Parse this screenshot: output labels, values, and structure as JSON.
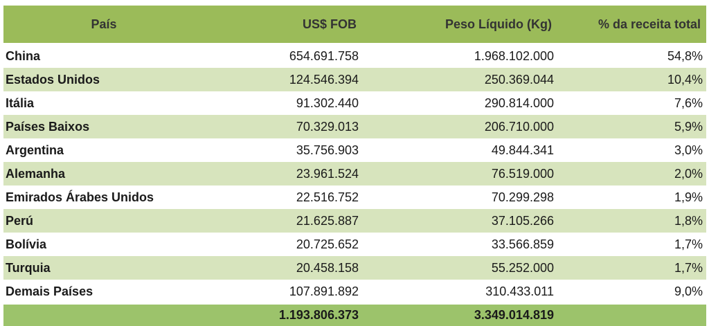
{
  "headers": [
    "País",
    "US$ FOB",
    "Peso Líquido (Kg)",
    "% da receita total"
  ],
  "rows": [
    [
      "China",
      "654.691.758",
      "1.968.102.000",
      "54,8%"
    ],
    [
      "Estados Unidos",
      "124.546.394",
      "250.369.044",
      "10,4%"
    ],
    [
      "Itália",
      "91.302.440",
      "290.814.000",
      "7,6%"
    ],
    [
      "Países Baixos",
      "70.329.013",
      "206.710.000",
      "5,9%"
    ],
    [
      "Argentina",
      "35.756.903",
      "49.844.341",
      "3,0%"
    ],
    [
      "Alemanha",
      "23.961.524",
      "76.519.000",
      "2,0%"
    ],
    [
      "Emirados Árabes Unidos",
      "22.516.752",
      "70.299.298",
      "1,9%"
    ],
    [
      "Perú",
      "21.625.887",
      "37.105.266",
      "1,8%"
    ],
    [
      "Bolívia",
      "20.725.652",
      "33.566.859",
      "1,7%"
    ],
    [
      "Turquia",
      "20.458.158",
      "55.252.000",
      "1,7%"
    ],
    [
      "Demais Países",
      "107.891.892",
      "310.433.011",
      "9,0%"
    ]
  ],
  "total": [
    "",
    "1.193.806.373",
    "3.349.014.819",
    ""
  ],
  "colors": {
    "header": "#9bbb59",
    "alt_row": "#d7e4bd",
    "total": "#9cc36b"
  }
}
